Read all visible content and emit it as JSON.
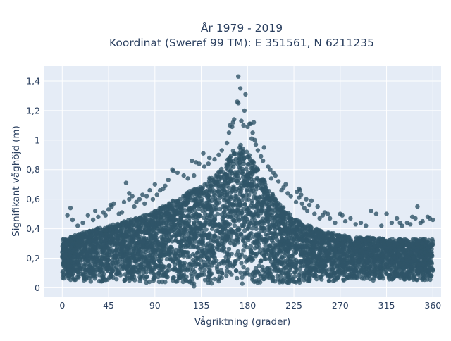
{
  "chart_data": {
    "type": "scatter",
    "title": "År 1979 - 2019",
    "subtitle": "Koordinat (Sweref 99 TM): E 351561, N 6211235",
    "xlabel": "Vågriktning (grader)",
    "ylabel": "Signifikant våghöjd (m)",
    "xlim": [
      -18,
      368
    ],
    "ylim": [
      -0.06,
      1.5
    ],
    "x_ticks": [
      0,
      45,
      90,
      135,
      180,
      225,
      270,
      315,
      360
    ],
    "y_ticks": [
      0,
      0.2,
      0.4,
      0.6,
      0.8,
      1,
      1.2,
      1.4
    ],
    "x_tick_labels": [
      "0",
      "45",
      "90",
      "135",
      "180",
      "225",
      "270",
      "315",
      "360"
    ],
    "y_tick_labels": [
      "0",
      "0,2",
      "0,4",
      "0,6",
      "0,8",
      "1",
      "1,2",
      "1,4"
    ],
    "grid": true,
    "legend": "none",
    "colors": {
      "marker": "#2f5468",
      "plot_bg": "#e5ecf6",
      "grid": "#ffffff",
      "text": "#2a3f5f"
    },
    "envelope": {
      "x": [
        0,
        15,
        30,
        45,
        60,
        75,
        90,
        105,
        120,
        135,
        150,
        160,
        170,
        175,
        180,
        190,
        200,
        210,
        225,
        240,
        255,
        270,
        285,
        300,
        315,
        330,
        345,
        360
      ],
      "upper": [
        0.33,
        0.36,
        0.4,
        0.42,
        0.45,
        0.48,
        0.52,
        0.58,
        0.64,
        0.7,
        0.78,
        0.86,
        0.98,
        0.96,
        0.92,
        0.8,
        0.68,
        0.58,
        0.47,
        0.42,
        0.38,
        0.36,
        0.34,
        0.34,
        0.33,
        0.33,
        0.33,
        0.33
      ],
      "lower": [
        0.05,
        0.05,
        0.04,
        0.04,
        0.04,
        0.03,
        0.03,
        0.03,
        0.03,
        0.02,
        0.02,
        0.02,
        0.02,
        0.02,
        0.02,
        0.02,
        0.03,
        0.03,
        0.03,
        0.04,
        0.04,
        0.05,
        0.05,
        0.05,
        0.05,
        0.05,
        0.05,
        0.05
      ]
    },
    "outliers": [
      [
        171,
        1.43
      ],
      [
        173,
        1.35
      ],
      [
        178,
        1.31
      ],
      [
        170,
        1.26
      ],
      [
        171,
        1.25
      ],
      [
        177,
        1.2
      ],
      [
        167,
        1.14
      ],
      [
        174,
        1.13
      ],
      [
        182,
        1.11
      ],
      [
        180,
        1.09
      ],
      [
        176,
        1.1
      ],
      [
        165,
        1.09
      ],
      [
        162,
        1.05
      ],
      [
        185,
        1.05
      ],
      [
        187,
        1.0
      ],
      [
        160,
        0.98
      ],
      [
        188,
        0.97
      ],
      [
        155,
        0.93
      ],
      [
        190,
        0.93
      ],
      [
        193,
        0.89
      ],
      [
        148,
        0.87
      ],
      [
        195,
        0.86
      ],
      [
        142,
        0.84
      ],
      [
        200,
        0.82
      ],
      [
        138,
        0.82
      ],
      [
        205,
        0.78
      ],
      [
        202,
        0.8
      ],
      [
        107,
        0.8
      ],
      [
        108,
        0.79
      ],
      [
        112,
        0.78
      ],
      [
        118,
        0.76
      ],
      [
        122,
        0.74
      ],
      [
        128,
        0.76
      ],
      [
        203,
        0.74
      ],
      [
        210,
        0.72
      ],
      [
        213,
        0.66
      ],
      [
        215,
        0.68
      ],
      [
        222,
        0.62
      ],
      [
        227,
        0.58
      ],
      [
        230,
        0.61
      ],
      [
        233,
        0.57
      ],
      [
        235,
        0.54
      ],
      [
        238,
        0.52
      ],
      [
        240,
        0.56
      ],
      [
        230,
        0.67
      ],
      [
        231,
        0.66
      ],
      [
        232,
        0.63
      ],
      [
        228,
        0.65
      ],
      [
        245,
        0.5
      ],
      [
        250,
        0.47
      ],
      [
        255,
        0.51
      ],
      [
        260,
        0.47
      ],
      [
        265,
        0.44
      ],
      [
        270,
        0.5
      ],
      [
        272,
        0.49
      ],
      [
        275,
        0.45
      ],
      [
        280,
        0.47
      ],
      [
        285,
        0.43
      ],
      [
        290,
        0.44
      ],
      [
        295,
        0.42
      ],
      [
        300,
        0.52
      ],
      [
        305,
        0.5
      ],
      [
        310,
        0.42
      ],
      [
        315,
        0.5
      ],
      [
        320,
        0.44
      ],
      [
        325,
        0.47
      ],
      [
        328,
        0.44
      ],
      [
        330,
        0.42
      ],
      [
        335,
        0.44
      ],
      [
        340,
        0.48
      ],
      [
        345,
        0.55
      ],
      [
        350,
        0.45
      ],
      [
        355,
        0.48
      ],
      [
        357,
        0.47
      ],
      [
        360,
        0.46
      ],
      [
        338,
        0.43
      ],
      [
        343,
        0.47
      ],
      [
        348,
        0.44
      ],
      [
        5,
        0.49
      ],
      [
        8,
        0.54
      ],
      [
        10,
        0.46
      ],
      [
        15,
        0.42
      ],
      [
        20,
        0.44
      ],
      [
        25,
        0.49
      ],
      [
        30,
        0.46
      ],
      [
        32,
        0.52
      ],
      [
        35,
        0.48
      ],
      [
        40,
        0.51
      ],
      [
        42,
        0.49
      ],
      [
        45,
        0.53
      ],
      [
        48,
        0.55
      ],
      [
        50,
        0.57
      ],
      [
        55,
        0.5
      ],
      [
        58,
        0.51
      ],
      [
        60,
        0.58
      ],
      [
        62,
        0.71
      ],
      [
        65,
        0.6
      ],
      [
        68,
        0.62
      ],
      [
        70,
        0.55
      ],
      [
        72,
        0.58
      ],
      [
        75,
        0.6
      ],
      [
        78,
        0.63
      ],
      [
        80,
        0.57
      ],
      [
        82,
        0.62
      ],
      [
        85,
        0.66
      ],
      [
        88,
        0.6
      ],
      [
        90,
        0.7
      ],
      [
        92,
        0.63
      ],
      [
        95,
        0.66
      ],
      [
        98,
        0.67
      ],
      [
        100,
        0.69
      ],
      [
        103,
        0.73
      ],
      [
        65,
        0.64
      ],
      [
        47,
        0.56
      ],
      [
        130,
        0.85
      ],
      [
        133,
        0.84
      ],
      [
        137,
        0.91
      ],
      [
        126,
        0.86
      ],
      [
        143,
        0.88
      ],
      [
        152,
        0.9
      ],
      [
        183,
        1.11
      ],
      [
        184,
        1.01
      ],
      [
        186,
        1.12
      ],
      [
        163,
        1.1
      ],
      [
        166,
        1.12
      ],
      [
        196,
        0.95
      ],
      [
        207,
        0.76
      ],
      [
        217,
        0.7
      ],
      [
        219,
        0.64
      ],
      [
        237,
        0.6
      ],
      [
        242,
        0.59
      ],
      [
        248,
        0.55
      ],
      [
        253,
        0.49
      ],
      [
        258,
        0.5
      ],
      [
        128,
        0.01
      ]
    ]
  }
}
